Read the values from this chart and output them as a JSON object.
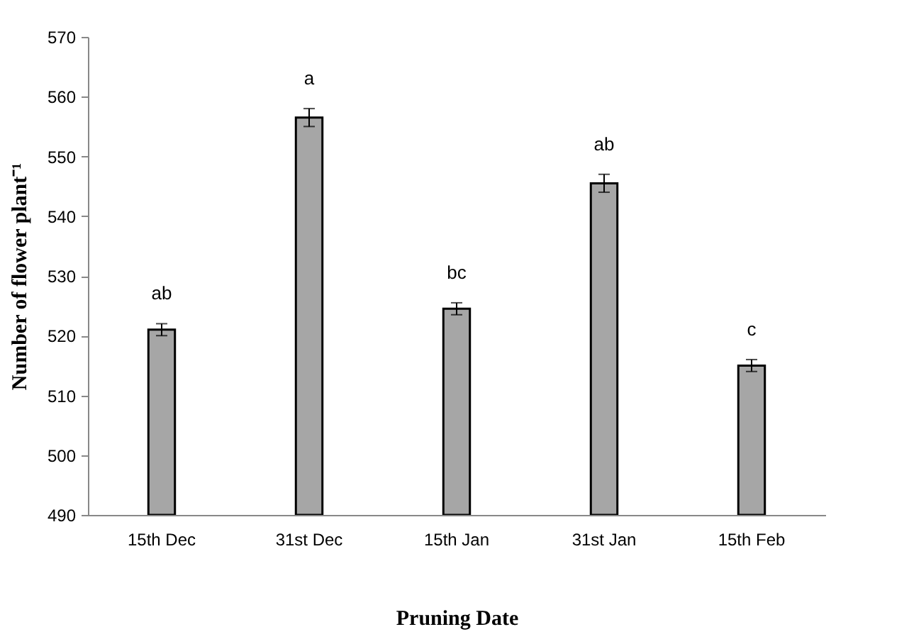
{
  "chart_data": {
    "type": "bar",
    "xlabel": "Pruning Date",
    "ylabel": "Number of flower plant⁻¹",
    "categories": [
      "15th Dec",
      "31st Dec",
      "15th Jan",
      "31st Jan",
      "15th Feb"
    ],
    "values": [
      521,
      556.5,
      524.5,
      545.5,
      515
    ],
    "errors": [
      1,
      1.5,
      1,
      1.5,
      1
    ],
    "value_labels": [
      "ab",
      "a",
      "bc",
      "ab",
      "c"
    ],
    "color": "#a6a6a6",
    "ylim": [
      490,
      570
    ],
    "yticks": [
      490,
      500,
      510,
      520,
      530,
      540,
      550,
      560,
      570
    ],
    "grid": false
  }
}
